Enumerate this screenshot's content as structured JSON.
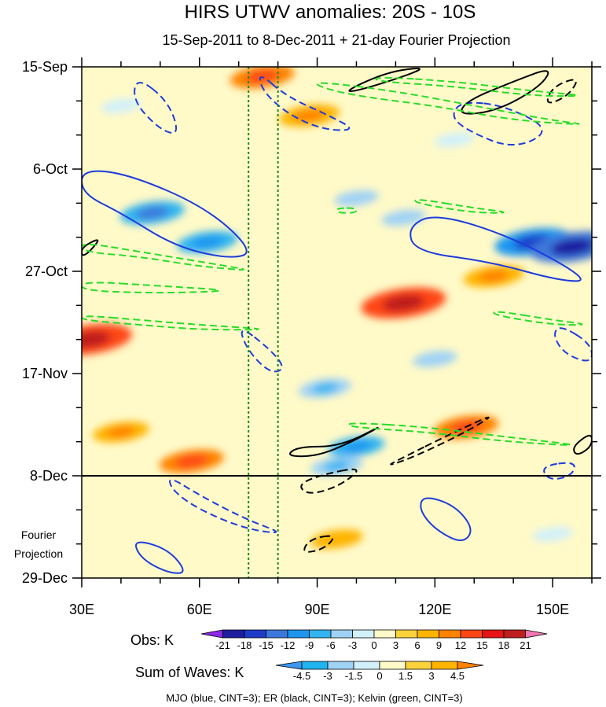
{
  "chart_data": {
    "type": "heatmap",
    "title": "HIRS UTWV anomalies: 20S - 10S",
    "subtitle": "15-Sep-2011 to 8-Dec-2011 + 21-day Fourier Projection",
    "x_axis": {
      "range_deg_east": [
        30,
        160
      ],
      "ticks": [
        {
          "value": 30,
          "label": "30E"
        },
        {
          "value": 60,
          "label": "60E"
        },
        {
          "value": 90,
          "label": "90E"
        },
        {
          "value": 120,
          "label": "120E"
        },
        {
          "value": 150,
          "label": "150E"
        }
      ]
    },
    "y_axis": {
      "range_days_since_15sep": [
        0,
        105
      ],
      "ticks": [
        {
          "day": 0,
          "label": "15-Sep"
        },
        {
          "day": 21,
          "label": "6-Oct"
        },
        {
          "day": 42,
          "label": "27-Oct"
        },
        {
          "day": 63,
          "label": "17-Nov"
        },
        {
          "day": 84,
          "label": "8-Dec"
        },
        {
          "day": 105,
          "label": "29-Dec"
        }
      ]
    },
    "projection_label": [
      "Fourier",
      "Projection"
    ],
    "observation_end_day": 84,
    "reference_longitudes": [
      72.5,
      80
    ],
    "obs_legend": {
      "label": "Obs: K",
      "levels": [
        "-21",
        "-18",
        "-15",
        "-12",
        "-9",
        "-6",
        "-3",
        "0",
        "3",
        "6",
        "9",
        "12",
        "15",
        "18",
        "21"
      ],
      "colors": [
        "#8c28e8",
        "#1e1ea0",
        "#1e3cc8",
        "#3c78dc",
        "#1e96f0",
        "#32b4f0",
        "#a0d2f5",
        "#d2f0fa",
        "#fffac8",
        "#fad23c",
        "#ffb400",
        "#ff8200",
        "#ff4614",
        "#e61414",
        "#be1e1e",
        "#f078b4"
      ]
    },
    "waves_legend": {
      "label": "Sum of Waves: K",
      "levels": [
        "-4.5",
        "-3",
        "-1.5",
        "0",
        "1.5",
        "3",
        "4.5"
      ],
      "colors": [
        "#3c96f0",
        "#1eb4f0",
        "#a0d2f5",
        "#d2f0fa",
        "#fffac8",
        "#fad23c",
        "#ffb400",
        "#ff8200"
      ]
    },
    "wave_colors": {
      "mjo": "#1e3cdc",
      "er": "#000000",
      "kelvin": "#28dc28"
    },
    "hotspots": [
      {
        "lon": 112,
        "day": 48.5,
        "value": 14
      },
      {
        "lon": 76,
        "day": 2,
        "value": 9
      },
      {
        "lon": 88,
        "day": 10,
        "value": 8
      },
      {
        "lon": 32,
        "day": 56,
        "value": 14
      },
      {
        "lon": 58,
        "day": 81,
        "value": 9
      },
      {
        "lon": 128,
        "day": 74,
        "value": 9
      },
      {
        "lon": 135,
        "day": 43,
        "value": 8
      },
      {
        "lon": 95,
        "day": 97,
        "value": 6
      },
      {
        "lon": 40,
        "day": 75,
        "value": 7
      },
      {
        "lon": 145,
        "day": 36,
        "value": -12
      },
      {
        "lon": 155,
        "day": 37,
        "value": -14
      },
      {
        "lon": 48,
        "day": 30,
        "value": -9
      },
      {
        "lon": 62,
        "day": 36,
        "value": -8
      },
      {
        "lon": 100,
        "day": 78,
        "value": -7
      },
      {
        "lon": 95,
        "day": 82,
        "value": -6
      },
      {
        "lon": 92,
        "day": 66,
        "value": -6
      },
      {
        "lon": 120,
        "day": 60,
        "value": -4
      },
      {
        "lon": 150,
        "day": 96,
        "value": -3
      },
      {
        "lon": 100,
        "day": 27,
        "value": -4
      },
      {
        "lon": 112,
        "day": 31,
        "value": -4
      },
      {
        "lon": 40,
        "day": 8,
        "value": -3
      },
      {
        "lon": 125,
        "day": 15,
        "value": -3
      }
    ],
    "contours": [
      {
        "wave": "mjo",
        "sign": "neg",
        "points": [
          [
            30,
            21
          ],
          [
            42,
            22
          ],
          [
            62,
            29
          ],
          [
            74,
            38
          ],
          [
            68,
            39.5
          ],
          [
            54,
            37
          ],
          [
            40,
            30
          ],
          [
            30,
            26
          ]
        ]
      },
      {
        "wave": "mjo",
        "sign": "neg",
        "points": [
          [
            120,
            30
          ],
          [
            140,
            35
          ],
          [
            160,
            44
          ],
          [
            152,
            44
          ],
          [
            134,
            40
          ],
          [
            115,
            38
          ],
          [
            113,
            33
          ]
        ]
      },
      {
        "wave": "mjo",
        "sign": "neg",
        "points": [
          [
            117,
            88
          ],
          [
            125,
            90
          ],
          [
            130,
            95
          ],
          [
            127,
            98
          ],
          [
            120,
            95
          ],
          [
            116,
            91
          ]
        ]
      },
      {
        "wave": "mjo",
        "sign": "neg",
        "points": [
          [
            43,
            97
          ],
          [
            52,
            99
          ],
          [
            57,
            104
          ],
          [
            52,
            104
          ],
          [
            45,
            101
          ]
        ]
      },
      {
        "wave": "mjo",
        "sign": "pos",
        "points": [
          [
            44,
            2
          ],
          [
            52,
            7
          ],
          [
            55,
            14
          ],
          [
            50,
            13
          ],
          [
            43,
            7
          ]
        ]
      },
      {
        "wave": "mjo",
        "sign": "pos",
        "points": [
          [
            75,
            1
          ],
          [
            82,
            6
          ],
          [
            93,
            10
          ],
          [
            100,
            13
          ],
          [
            92,
            13
          ],
          [
            83,
            10
          ],
          [
            76,
            5
          ]
        ]
      },
      {
        "wave": "mjo",
        "sign": "pos",
        "points": [
          [
            127,
            7
          ],
          [
            138,
            8
          ],
          [
            150,
            13
          ],
          [
            140,
            17
          ],
          [
            128,
            13
          ],
          [
            124,
            10
          ]
        ]
      },
      {
        "wave": "mjo",
        "sign": "pos",
        "points": [
          [
            70,
            53
          ],
          [
            78,
            58
          ],
          [
            82,
            62
          ],
          [
            78,
            63
          ],
          [
            72,
            58
          ]
        ]
      },
      {
        "wave": "mjo",
        "sign": "pos",
        "points": [
          [
            152,
            53
          ],
          [
            160,
            57
          ],
          [
            160,
            61
          ],
          [
            153,
            59
          ],
          [
            150,
            55
          ]
        ]
      },
      {
        "wave": "mjo",
        "sign": "pos",
        "points": [
          [
            52,
            84
          ],
          [
            60,
            88
          ],
          [
            72,
            93
          ],
          [
            82,
            96
          ],
          [
            72,
            95
          ],
          [
            60,
            91
          ],
          [
            53,
            87
          ]
        ]
      },
      {
        "wave": "mjo",
        "sign": "pos",
        "points": [
          [
            147,
            82
          ],
          [
            156,
            81
          ],
          [
            155,
            84
          ],
          [
            149,
            85
          ]
        ]
      },
      {
        "wave": "er",
        "sign": "neg",
        "points": [
          [
            96,
            78
          ],
          [
            108,
            73
          ],
          [
            99,
            77
          ],
          [
            90,
            80
          ],
          [
            82,
            80
          ],
          [
            85,
            78
          ]
        ]
      },
      {
        "wave": "er",
        "sign": "neg",
        "points": [
          [
            128,
            7
          ],
          [
            140,
            3
          ],
          [
            150,
            0
          ],
          [
            147,
            4
          ],
          [
            136,
            9
          ],
          [
            126,
            10
          ]
        ]
      },
      {
        "wave": "er",
        "sign": "neg",
        "points": [
          [
            97,
            5
          ],
          [
            108,
            1
          ],
          [
            118,
            0
          ],
          [
            112,
            2
          ],
          [
            100,
            5
          ]
        ]
      },
      {
        "wave": "er",
        "sign": "neg",
        "points": [
          [
            30,
            37
          ],
          [
            35,
            35
          ],
          [
            32,
            38
          ],
          [
            30,
            39
          ]
        ]
      },
      {
        "wave": "er",
        "sign": "neg",
        "points": [
          [
            155,
            78
          ],
          [
            160,
            75
          ],
          [
            160,
            78
          ],
          [
            156,
            80
          ]
        ]
      },
      {
        "wave": "er",
        "sign": "pos",
        "points": [
          [
            110,
            81
          ],
          [
            125,
            75
          ],
          [
            136,
            71
          ],
          [
            128,
            75
          ],
          [
            115,
            80
          ],
          [
            108,
            82
          ]
        ]
      },
      {
        "wave": "er",
        "sign": "pos",
        "points": [
          [
            90,
            84
          ],
          [
            102,
            82
          ],
          [
            96,
            86
          ],
          [
            88,
            88
          ],
          [
            85,
            86
          ]
        ]
      },
      {
        "wave": "er",
        "sign": "pos",
        "points": [
          [
            88,
            97
          ],
          [
            95,
            96
          ],
          [
            92,
            99
          ],
          [
            86,
            100
          ]
        ]
      },
      {
        "wave": "er",
        "sign": "pos",
        "points": [
          [
            150,
            4
          ],
          [
            157,
            2
          ],
          [
            154,
            6
          ],
          [
            148,
            8
          ]
        ]
      },
      {
        "wave": "kelvin",
        "sign": "pos",
        "points": [
          [
            30,
            36
          ],
          [
            45,
            38
          ],
          [
            60,
            40
          ],
          [
            75,
            42
          ],
          [
            60,
            41
          ],
          [
            45,
            39
          ],
          [
            30,
            38
          ]
        ]
      },
      {
        "wave": "kelvin",
        "sign": "pos",
        "points": [
          [
            30,
            44
          ],
          [
            50,
            45
          ],
          [
            70,
            46
          ],
          [
            50,
            46.5
          ],
          [
            30,
            46
          ]
        ]
      },
      {
        "wave": "kelvin",
        "sign": "pos",
        "points": [
          [
            90,
            3
          ],
          [
            110,
            5
          ],
          [
            130,
            8
          ],
          [
            150,
            11
          ],
          [
            160,
            12
          ],
          [
            140,
            11
          ],
          [
            120,
            8
          ],
          [
            100,
            6
          ],
          [
            90,
            4
          ]
        ]
      },
      {
        "wave": "kelvin",
        "sign": "pos",
        "points": [
          [
            105,
            2
          ],
          [
            125,
            3
          ],
          [
            145,
            5
          ],
          [
            160,
            6
          ],
          [
            145,
            6
          ],
          [
            125,
            4
          ],
          [
            105,
            3
          ]
        ]
      },
      {
        "wave": "kelvin",
        "sign": "pos",
        "points": [
          [
            98,
            73
          ],
          [
            118,
            74
          ],
          [
            138,
            76
          ],
          [
            160,
            78
          ],
          [
            138,
            77
          ],
          [
            118,
            75
          ],
          [
            98,
            74
          ]
        ]
      },
      {
        "wave": "kelvin",
        "sign": "pos",
        "points": [
          [
            30,
            51
          ],
          [
            45,
            52
          ],
          [
            60,
            53
          ],
          [
            80,
            54
          ],
          [
            60,
            54
          ],
          [
            45,
            53
          ],
          [
            30,
            52
          ]
        ]
      },
      {
        "wave": "kelvin",
        "sign": "pos",
        "points": [
          [
            135,
            50
          ],
          [
            150,
            52
          ],
          [
            160,
            53
          ],
          [
            150,
            53
          ],
          [
            135,
            51
          ]
        ]
      },
      {
        "wave": "kelvin",
        "sign": "pos",
        "points": [
          [
            115,
            27
          ],
          [
            130,
            29
          ],
          [
            140,
            30
          ],
          [
            130,
            30
          ],
          [
            115,
            28
          ]
        ]
      },
      {
        "wace": "kelvin",
        "wave": "kelvin",
        "sign": "pos",
        "points": [
          [
            95,
            29
          ],
          [
            100,
            29
          ],
          [
            100,
            30
          ],
          [
            95,
            30
          ]
        ]
      }
    ]
  }
}
